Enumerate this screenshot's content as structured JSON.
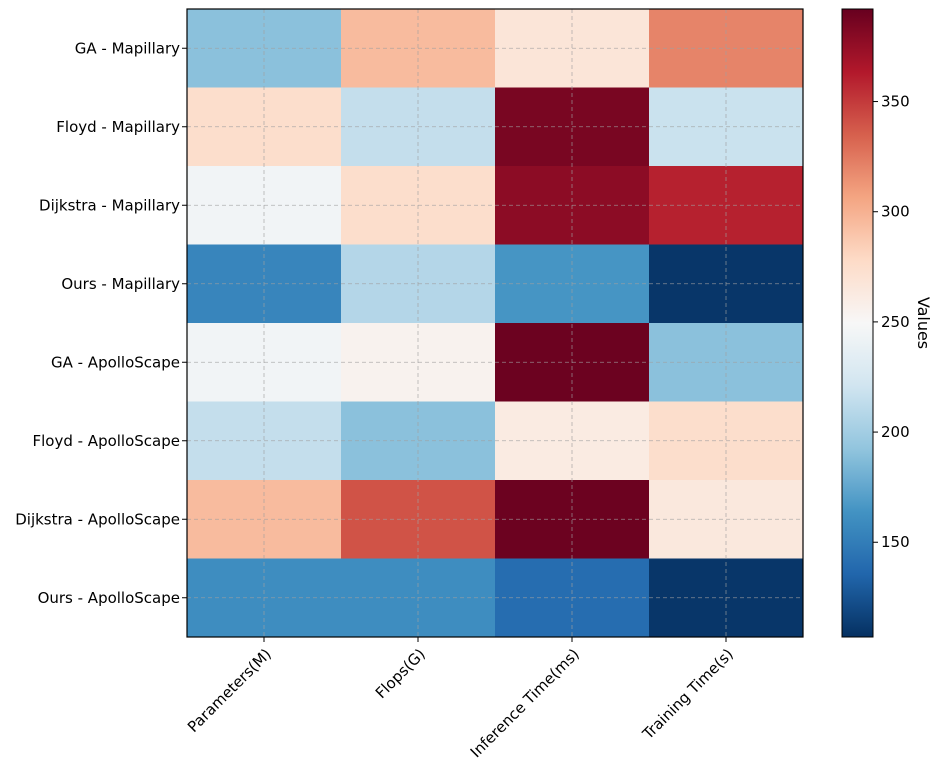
{
  "chart_data": {
    "type": "heatmap",
    "title": "",
    "rows": [
      "GA - Mapillary",
      "Floyd - Mapillary",
      "Dijkstra - Mapillary",
      "Ours - Mapillary",
      "GA - ApolloScape",
      "Floyd - ApolloScape",
      "Dijkstra - ApolloScape",
      "Ours - ApolloScape"
    ],
    "columns": [
      "Parameters(M)",
      "Flops(G)",
      "Inference Time(ms)",
      "Training Time(s)"
    ],
    "values": [
      [
        190,
        295,
        268,
        320
      ],
      [
        275,
        215,
        385,
        218
      ],
      [
        245,
        275,
        378,
        360
      ],
      [
        155,
        208,
        165,
        110
      ],
      [
        245,
        255,
        390,
        190
      ],
      [
        215,
        190,
        262,
        275
      ],
      [
        295,
        340,
        390,
        265
      ],
      [
        160,
        160,
        140,
        110
      ]
    ],
    "colorbar": {
      "label": "Values",
      "ticks": [
        150,
        200,
        250,
        300,
        350
      ],
      "vmin": 107,
      "vmax": 392,
      "colormap": "RdBu_r"
    },
    "grid": true
  }
}
